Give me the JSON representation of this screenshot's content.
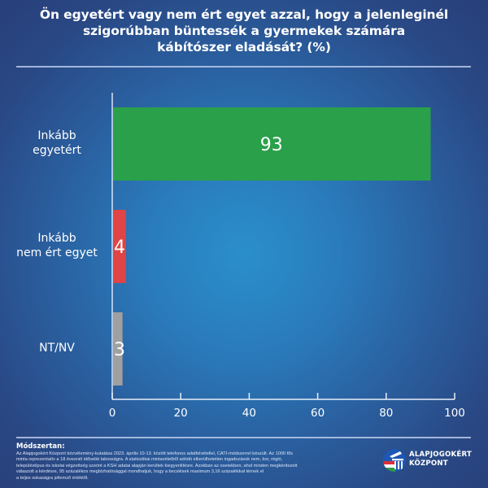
{
  "title_lines": [
    "Ön egyetért vagy nem ért egyet azzal, hogy a jelenleginél",
    "szigorúbban büntessék a gyermekek számára",
    "kábítószer eladását? (%)"
  ],
  "chart_data": {
    "type": "bar",
    "orientation": "horizontal",
    "title": "Ön egyetért vagy nem ért egyet azzal, hogy a jelenleginél szigorúbban büntessék a gyermekek számára kábítószer eladását? (%)",
    "categories": [
      "Inkább egyetért",
      "Inkább nem ért egyet",
      "NT/NV"
    ],
    "category_label_lines": [
      [
        "Inkább",
        "egyetért"
      ],
      [
        "Inkább",
        "nem ért egyet"
      ],
      [
        "NT/NV"
      ]
    ],
    "values": [
      93,
      4,
      3
    ],
    "data_labels": [
      "93",
      "4",
      "3"
    ],
    "colors": [
      "#2aa04a",
      "#e04444",
      "#a0a0a0"
    ],
    "xlabel": "",
    "ylabel": "",
    "xlim": [
      0,
      100
    ],
    "xticks": [
      0,
      20,
      40,
      60,
      80,
      100
    ],
    "xtick_labels": [
      "0",
      "20",
      "40",
      "60",
      "80",
      "100"
    ],
    "grid": false,
    "legend": "none"
  },
  "footer": {
    "heading": "Módszertan:",
    "lines": [
      "Az Alapjogokért Központ közvélemény-kutatása 2023. április 10-13. között telefonos adatfelvétellel, CATI-módszerrel készült. Az 1000 fős",
      "minta reprezentatív a 18 évesnél idősebb lakosságra. A statisztikai mintavételből adódó elkerülhetetlen ingadozások nem, kor, régió,",
      "településtípus és iskolai végzettség szerint a KSH adatai alapján kerültek kiegyenlítésre. Azokban az esetekben, ahol minden megkérdezett",
      "válaszolt a kérdésre, 95 százalékos megbízhatósággal mondhatjuk, hogy a becslések maximum 3,16 százalékkal térnek el",
      "a teljes sokaságra jellemző értéktől."
    ]
  },
  "logo": {
    "line1": "ALAPJOGOKÉRT",
    "line2": "KÖZPONT",
    "icon": "alapjogokert-logo-icon"
  }
}
